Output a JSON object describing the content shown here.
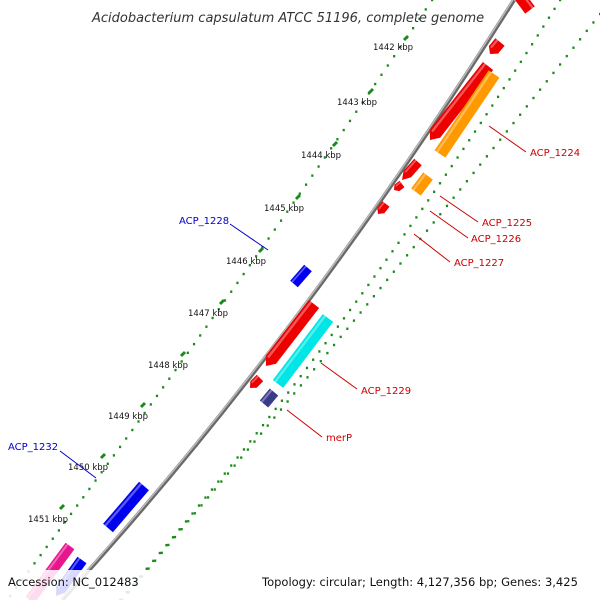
{
  "title": "Acidobacterium capsulatum ATCC 51196, complete genome",
  "footer": {
    "accession": "Accession: NC_012483",
    "summary": "Topology: circular; Length: 4,127,356 bp; Genes: 3,425"
  },
  "ticks": [
    "1442 kbp",
    "1443 kbp",
    "1444 kbp",
    "1445 kbp",
    "1446 kbp",
    "1447 kbp",
    "1448 kbp",
    "1449 kbp",
    "1450 kbp",
    "1451 kbp"
  ],
  "gene_labels": {
    "acp1224": "ACP_1224",
    "acp1225": "ACP_1225",
    "acp1226": "ACP_1226",
    "acp1227": "ACP_1227",
    "acp1228": "ACP_1228",
    "acp1229": "ACP_1229",
    "merp": "merP",
    "acp1232": "ACP_1232"
  },
  "colors": {
    "reverse_label": "#cc0000",
    "forward_label": "#0000cc",
    "red": "#ee0000",
    "orange": "#ff9900",
    "blue": "#0000ee",
    "cyan": "#00e5e5",
    "slate": "#3a3a8c",
    "magenta": "#e8168c",
    "backbone": "#888888",
    "dots": "#1a8a1a"
  }
}
